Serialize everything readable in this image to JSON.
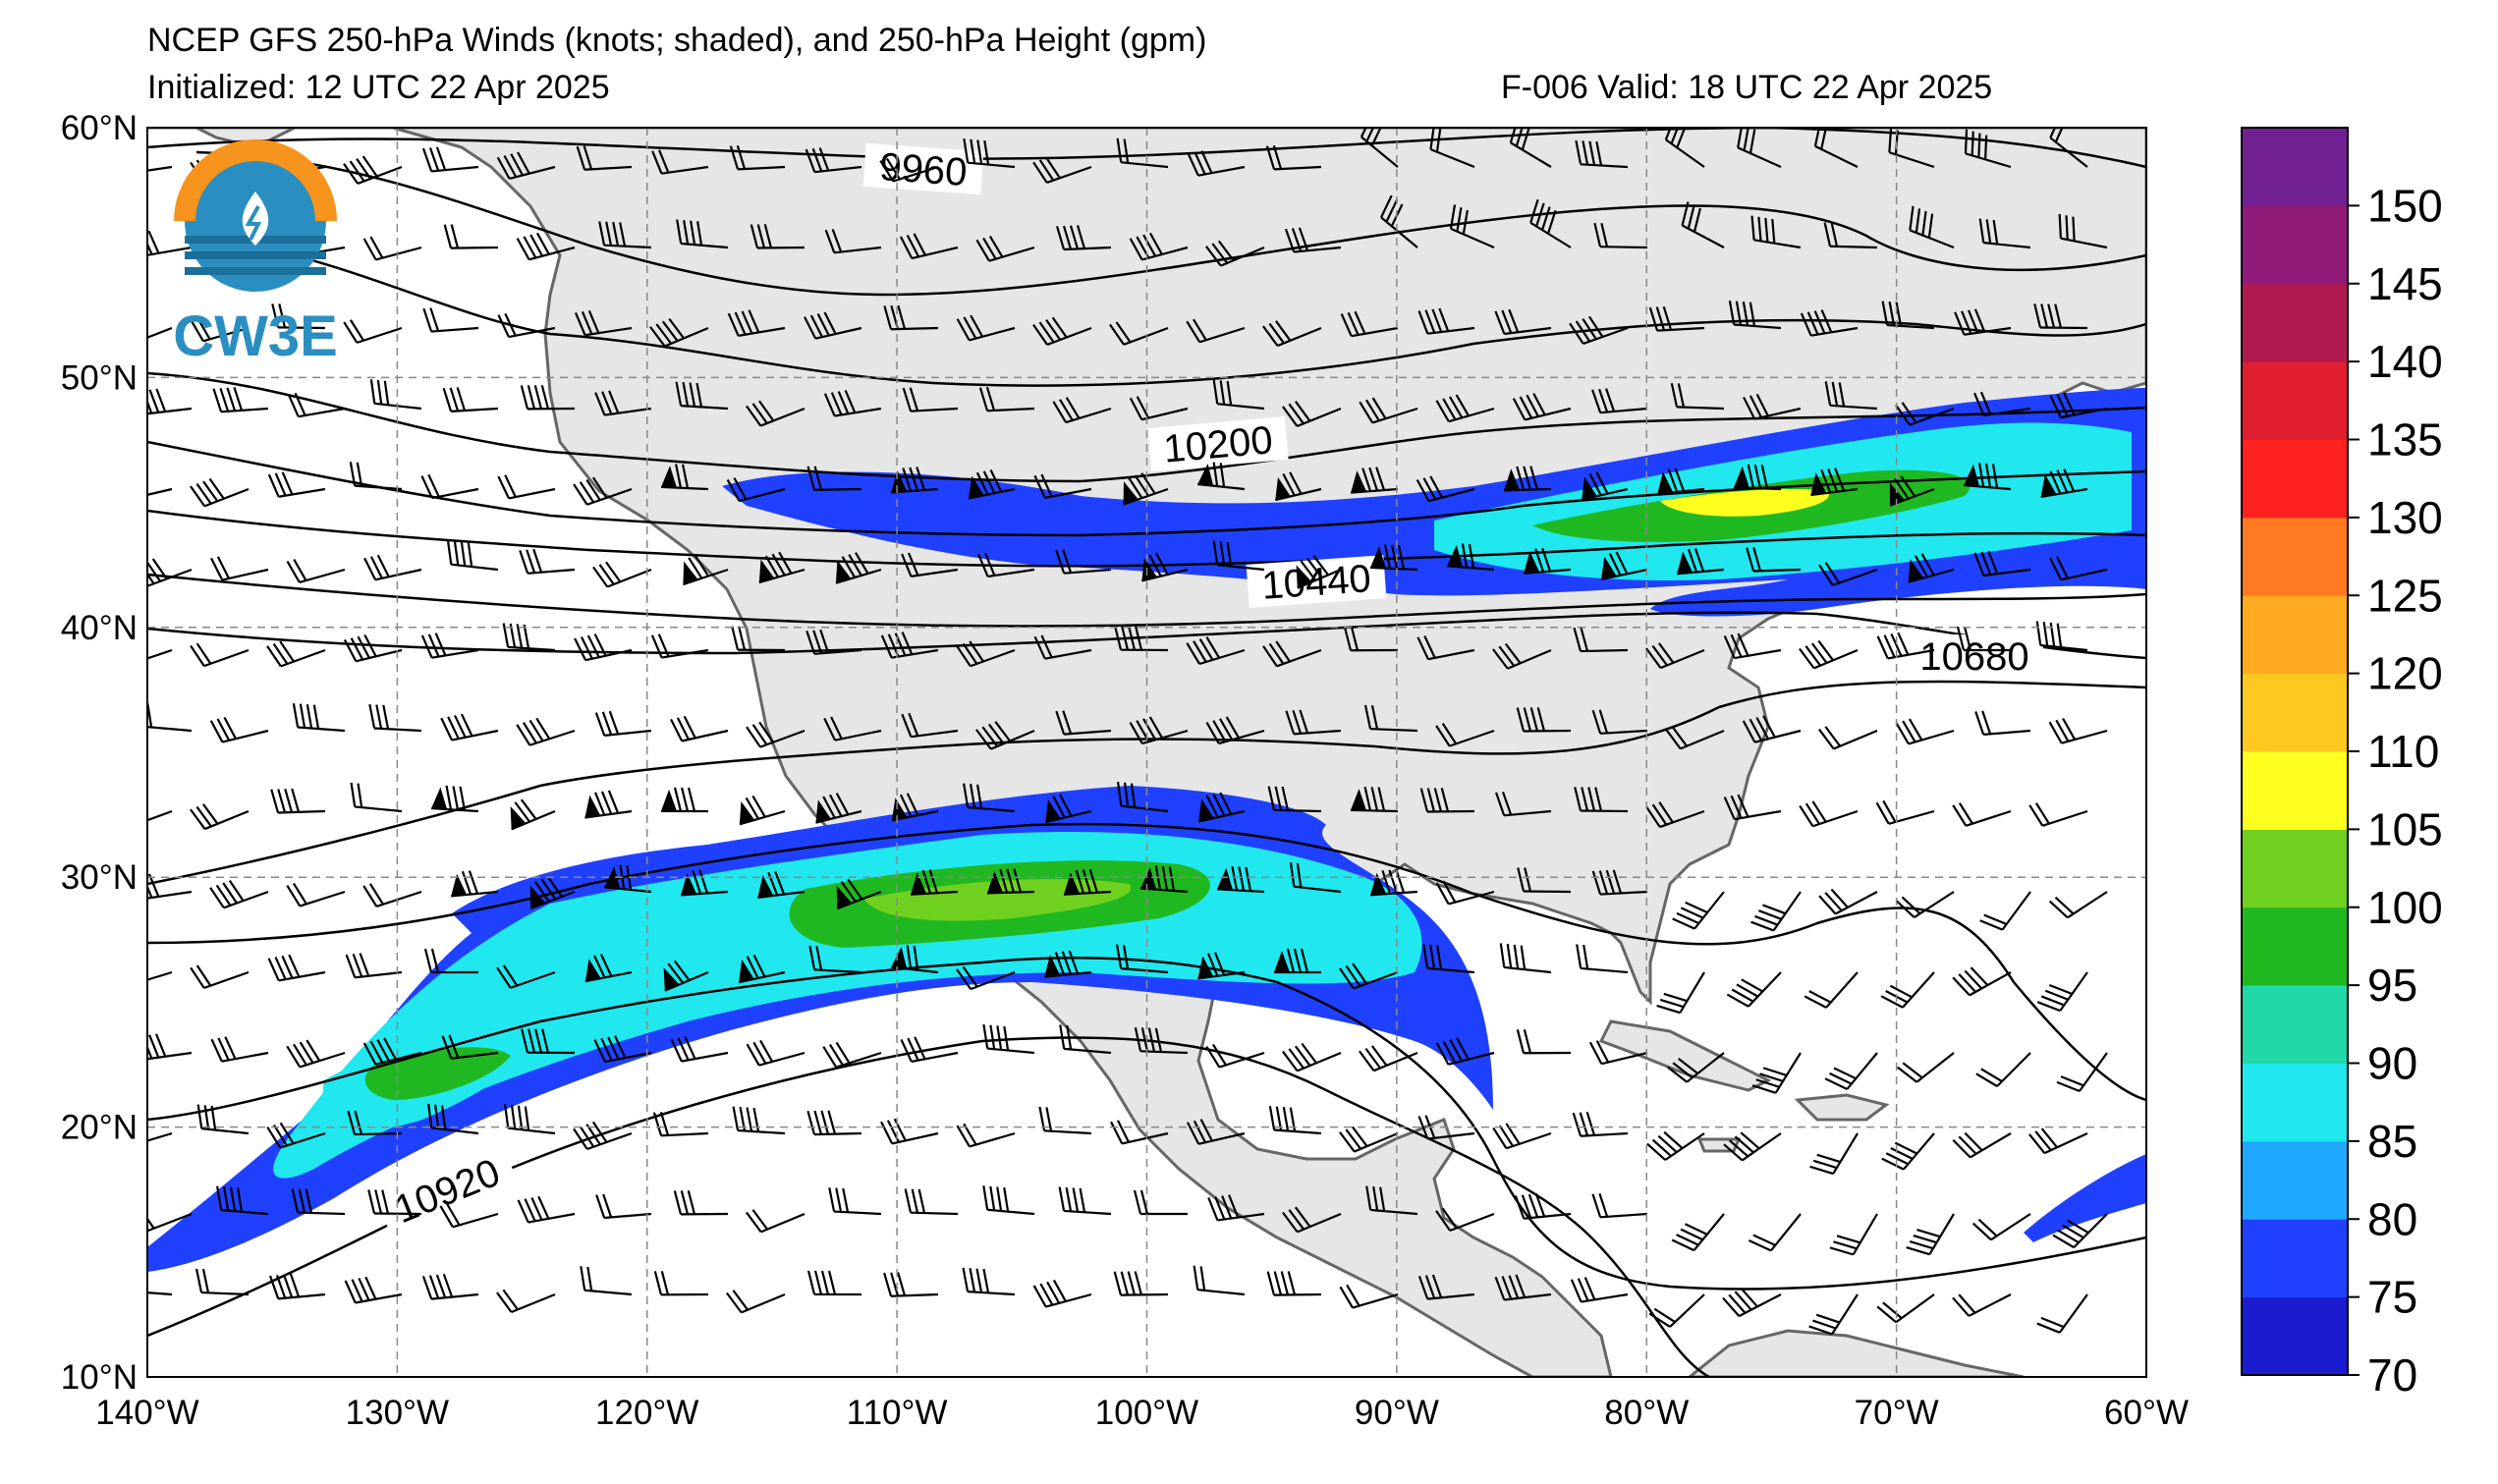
{
  "header": {
    "title": "NCEP GFS 250-hPa Winds (knots; shaded), and 250-hPa Height (gpm)",
    "initialized": "Initialized: 12 UTC 22 Apr 2025",
    "valid": "F-006  Valid: 18 UTC 22 Apr 2025"
  },
  "logo": {
    "text": "CW3E"
  },
  "axes": {
    "lat_labels": [
      "60°N",
      "50°N",
      "40°N",
      "30°N",
      "20°N",
      "10°N"
    ],
    "lon_labels": [
      "140°W",
      "130°W",
      "120°W",
      "110°W",
      "100°W",
      "90°W",
      "80°W",
      "70°W",
      "60°W"
    ],
    "lat_range": [
      10,
      60
    ],
    "lon_range": [
      -140,
      -60
    ]
  },
  "contour_labels": [
    "9960",
    "10200",
    "10440",
    "10680",
    "10920"
  ],
  "colorbar": {
    "labels": [
      "150",
      "145",
      "140",
      "135",
      "130",
      "125",
      "120",
      "110",
      "105",
      "100",
      "95",
      "90",
      "85",
      "80",
      "75",
      "70"
    ],
    "colors": [
      "#1b1bd0",
      "#2040ff",
      "#20a8ff",
      "#20e8ee",
      "#20d8a8",
      "#20b820",
      "#70d020",
      "#ffff20",
      "#ffc820",
      "#ffaa20",
      "#ff7a20",
      "#ff2020",
      "#e01e30",
      "#b01a50",
      "#901a78",
      "#702090"
    ]
  },
  "colors": {
    "land": "#e6e6e6",
    "ocean": "#ffffff",
    "coast": "#666666",
    "grid": "#888888"
  }
}
